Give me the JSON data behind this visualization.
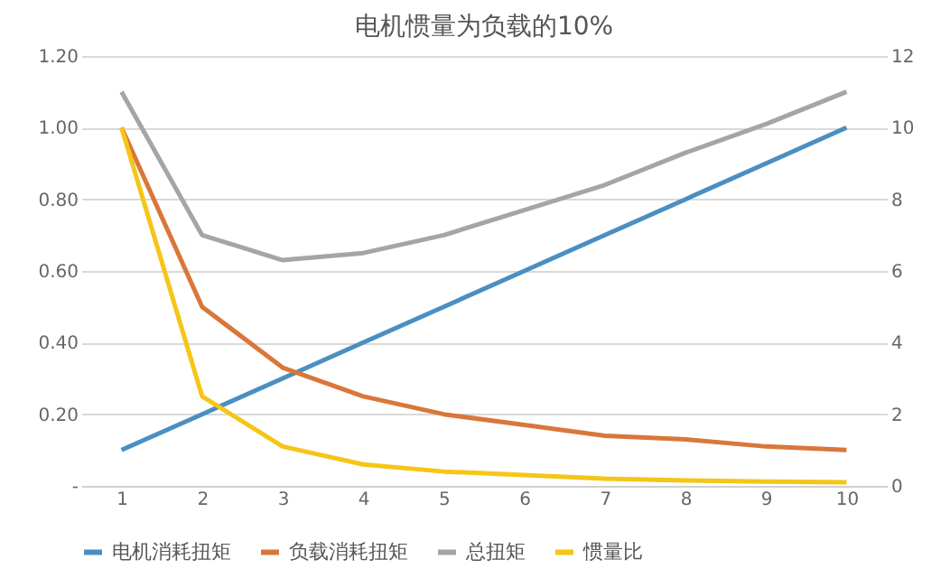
{
  "chart_data": {
    "type": "line",
    "title": "电机惯量为负载的10%",
    "categories": [
      "1",
      "2",
      "3",
      "4",
      "5",
      "6",
      "7",
      "8",
      "9",
      "10"
    ],
    "series": [
      {
        "name": "电机消耗扭矩",
        "color": "#4a8fc0",
        "values": [
          0.1,
          0.2,
          0.3,
          0.4,
          0.5,
          0.6,
          0.7,
          0.8,
          0.9,
          1.0
        ]
      },
      {
        "name": "负载消耗扭矩",
        "color": "#d9773a",
        "values": [
          1.0,
          0.5,
          0.33,
          0.25,
          0.2,
          0.17,
          0.14,
          0.13,
          0.11,
          0.1
        ]
      },
      {
        "name": "总扭矩",
        "color": "#a5a5a5",
        "values": [
          1.1,
          0.7,
          0.63,
          0.65,
          0.7,
          0.77,
          0.84,
          0.93,
          1.01,
          1.1
        ]
      },
      {
        "name": "惯量比",
        "color": "#f5c518",
        "axis": "y2",
        "values": [
          10,
          2.5,
          1.1,
          0.6,
          0.4,
          0.3,
          0.2,
          0.15,
          0.12,
          0.1
        ]
      }
    ],
    "ylim": [
      0,
      1.2
    ],
    "yticks": [
      {
        "value": 0,
        "label": "-"
      },
      {
        "value": 0.2,
        "label": "0.20"
      },
      {
        "value": 0.4,
        "label": "0.40"
      },
      {
        "value": 0.6,
        "label": "0.60"
      },
      {
        "value": 0.8,
        "label": "0.80"
      },
      {
        "value": 1.0,
        "label": "1.00"
      },
      {
        "value": 1.2,
        "label": "1.20"
      }
    ],
    "y2lim": [
      0,
      12
    ],
    "y2ticks": [
      0,
      2,
      4,
      6,
      8,
      10,
      12
    ],
    "grid": "y",
    "legend": "bottom",
    "marker": "none",
    "line_style": "solid"
  }
}
